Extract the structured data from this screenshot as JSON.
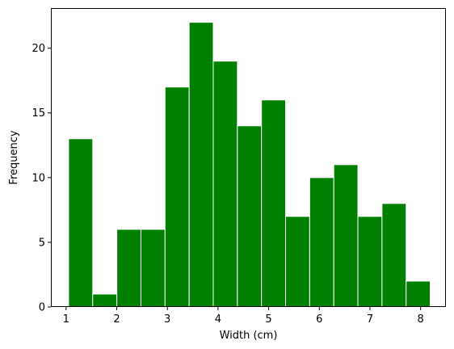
{
  "chart_data": {
    "type": "bar",
    "subtype": "histogram",
    "title": "",
    "xlabel": "Width (cm)",
    "ylabel": "Frequency",
    "bar_color": "#008000",
    "edge_color": "#ffffff",
    "grid": false,
    "legend": "none",
    "xlim": [
      0.7,
      8.5
    ],
    "ylim": [
      0,
      23.1
    ],
    "xticks": [
      1,
      2,
      3,
      4,
      5,
      6,
      7,
      8
    ],
    "yticks": [
      0,
      5,
      10,
      15,
      20
    ],
    "bins": [
      {
        "start": 1.05,
        "end": 1.526,
        "value": 13
      },
      {
        "start": 1.526,
        "end": 2.002,
        "value": 1
      },
      {
        "start": 2.002,
        "end": 2.478,
        "value": 6
      },
      {
        "start": 2.478,
        "end": 2.954,
        "value": 6
      },
      {
        "start": 2.954,
        "end": 3.43,
        "value": 17
      },
      {
        "start": 3.43,
        "end": 3.906,
        "value": 22
      },
      {
        "start": 3.906,
        "end": 4.382,
        "value": 19
      },
      {
        "start": 4.382,
        "end": 4.858,
        "value": 14
      },
      {
        "start": 4.858,
        "end": 5.334,
        "value": 16
      },
      {
        "start": 5.334,
        "end": 5.81,
        "value": 7
      },
      {
        "start": 5.81,
        "end": 6.286,
        "value": 10
      },
      {
        "start": 6.286,
        "end": 6.762,
        "value": 11
      },
      {
        "start": 6.762,
        "end": 7.238,
        "value": 7
      },
      {
        "start": 7.238,
        "end": 7.714,
        "value": 8
      },
      {
        "start": 7.714,
        "end": 8.19,
        "value": 2
      }
    ]
  }
}
